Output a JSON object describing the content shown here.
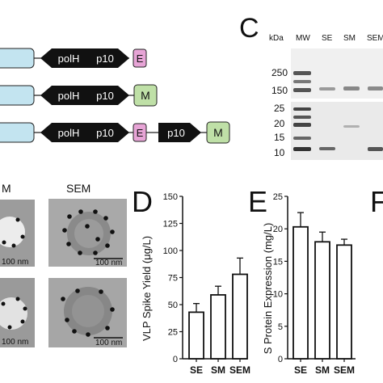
{
  "panels": {
    "A": {
      "constructs": [
        {
          "promoters": [
            "polH",
            "p10"
          ],
          "genes": [
            "E"
          ]
        },
        {
          "promoters": [
            "polH",
            "p10"
          ],
          "genes": [
            "M"
          ]
        },
        {
          "promoters": [
            "polH",
            "p10",
            "p10"
          ],
          "genes": [
            "E",
            "M"
          ]
        }
      ]
    },
    "B": {
      "column_labels": [
        "M",
        "SEM"
      ],
      "scale_bar": "100 nm"
    },
    "C": {
      "letter": "C",
      "kda_label": "kDa",
      "lane_labels": [
        "MW",
        "SE",
        "SM",
        "SEM"
      ],
      "upper_markers": [
        "250",
        "150"
      ],
      "lower_markers": [
        "25",
        "20",
        "15",
        "10"
      ]
    },
    "D": {
      "letter": "D"
    },
    "E": {
      "letter": "E"
    },
    "F": {
      "letter": "F"
    }
  },
  "colors": {
    "E": "#e7a4d6",
    "M": "#bfe0a7",
    "box": "#c3e4f0",
    "arrow": "#111111"
  },
  "chart_data": [
    {
      "type": "bar",
      "panel": "D",
      "categories": [
        "SE",
        "SM",
        "SEM"
      ],
      "values": [
        43,
        59,
        78
      ],
      "errors": [
        8,
        8,
        15
      ],
      "ylabel": "VLP Spike Yield (μg/L)",
      "xlabel": "",
      "ylim": [
        0,
        150
      ],
      "yticks": [
        0,
        25,
        50,
        75,
        100,
        125,
        150
      ]
    },
    {
      "type": "bar",
      "panel": "E",
      "categories": [
        "SE",
        "SM",
        "SEM"
      ],
      "values": [
        20.3,
        18.0,
        17.5
      ],
      "errors": [
        2.2,
        1.5,
        0.9
      ],
      "ylabel": "S Protein Expression (mg/L)",
      "xlabel": "",
      "ylim": [
        0,
        25
      ],
      "yticks": [
        0,
        5,
        10,
        15,
        20,
        25
      ]
    }
  ]
}
